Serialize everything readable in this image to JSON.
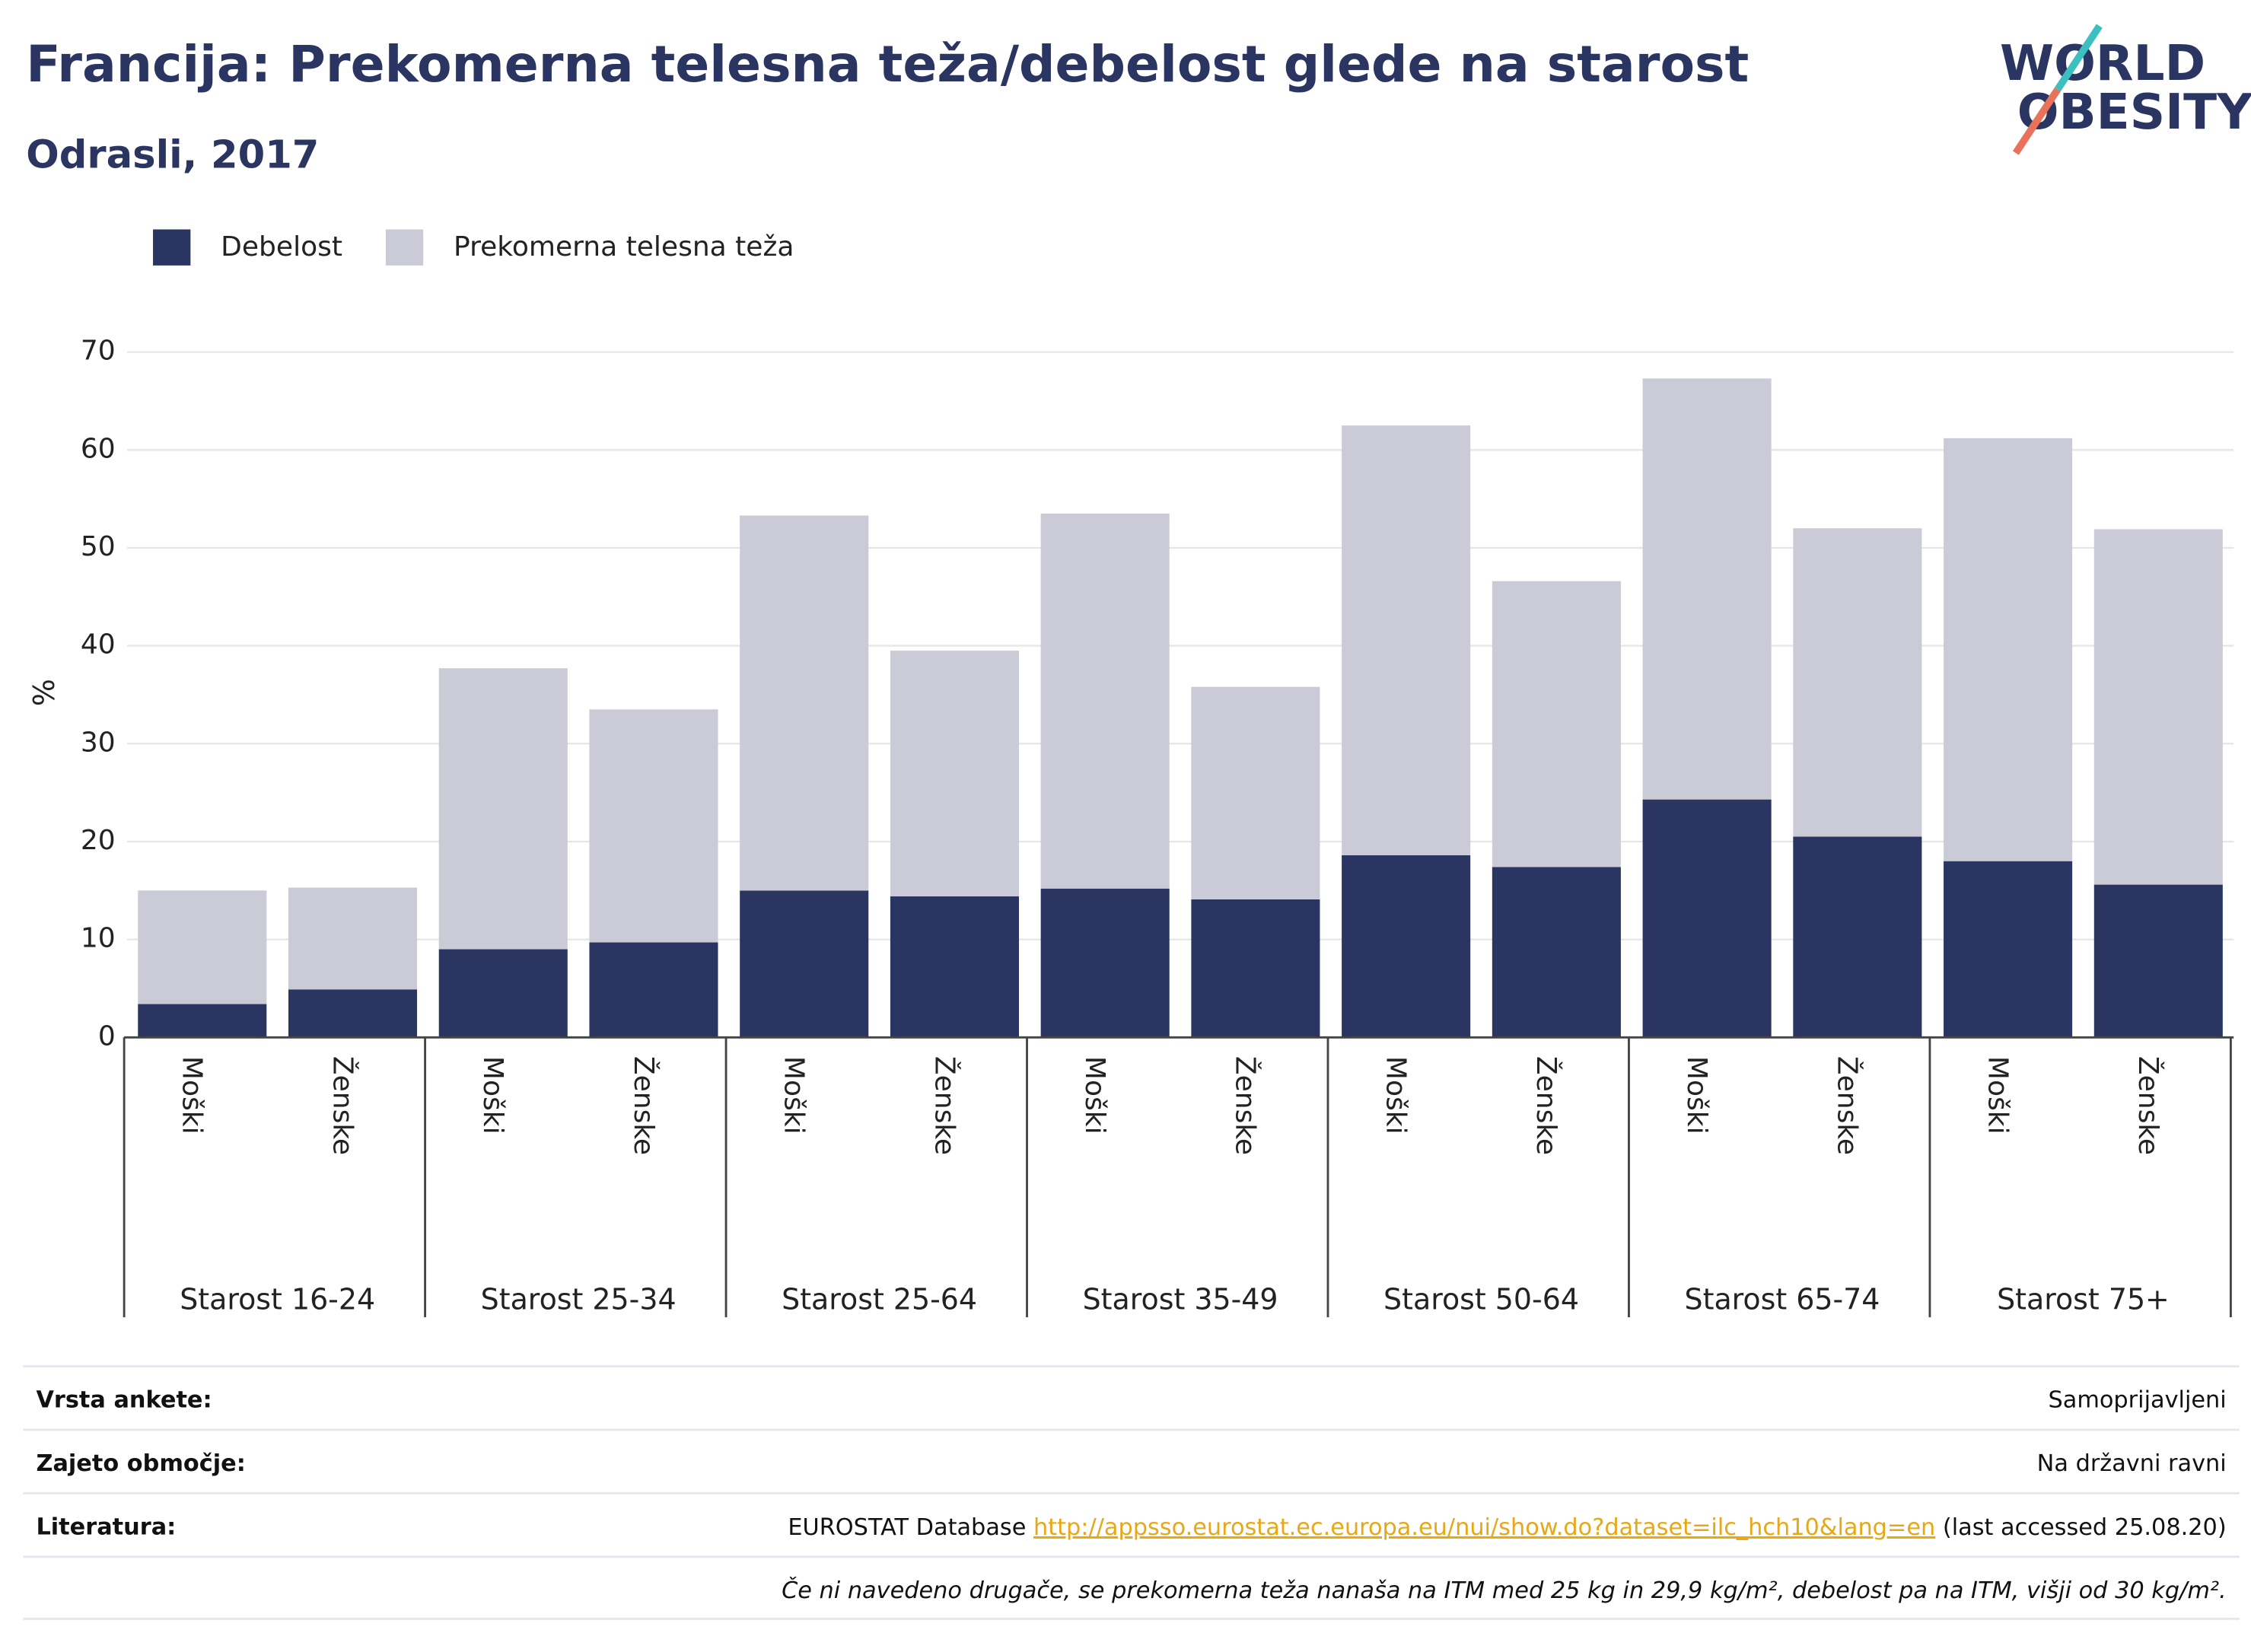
{
  "chart_data": {
    "type": "stacked-bar",
    "title": "Francija: Prekomerna telesna teža/debelost glede na starost",
    "subtitle": "Odrasli, 2017",
    "y_label": "%",
    "categories": [
      "Moški",
      "Ženske",
      "Moški",
      "Ženske",
      "Moški",
      "Ženske",
      "Moški",
      "Ženske",
      "Moški",
      "Ženske",
      "Moški",
      "Ženske",
      "Moški",
      "Ženske"
    ],
    "groups": [
      "Starost 16-24",
      "Starost 25-34",
      "Starost 25-64",
      "Starost 35-49",
      "Starost 50-64",
      "Starost 65-74",
      "Starost 75+"
    ],
    "series": [
      {
        "name": "Debelost",
        "color": "#2b3561",
        "values": [
          3.4,
          4.9,
          9.0,
          9.7,
          15.0,
          14.4,
          15.2,
          14.1,
          18.6,
          17.4,
          24.3,
          20.5,
          18.0,
          15.6
        ]
      },
      {
        "name": "Prekomerna telesna teža",
        "color": "#cacbd6",
        "values": [
          11.6,
          10.4,
          28.7,
          23.8,
          38.3,
          25.1,
          38.3,
          21.7,
          43.9,
          29.2,
          43.0,
          31.5,
          43.2,
          36.3
        ]
      }
    ],
    "ylim": [
      0,
      70
    ],
    "yticks": [
      0,
      10,
      20,
      30,
      40,
      50,
      60,
      70
    ],
    "grid": true,
    "legend": "top-left"
  },
  "logo": {
    "line1": "WORLD",
    "line2": "OBESITY"
  },
  "footer": {
    "rows": [
      {
        "label": "Vrsta ankete:",
        "value": "Samoprijavljeni"
      },
      {
        "label": "Zajeto območje:",
        "value": "Na državni ravni"
      }
    ],
    "source": {
      "label": "Literatura:",
      "prefix": "EUROSTAT Database",
      "link": "http://appsso.eurostat.ec.europa.eu/nui/show.do?dataset=ilc_hch10&lang=en",
      "suffix": "(last accessed 25.08.20)"
    },
    "note": "Če ni navedeno drugače, se prekomerna teža nanaša na ITM med 25 kg in 29,9 kg/m², debelost pa na ITM, višji od 30 kg/m²."
  }
}
